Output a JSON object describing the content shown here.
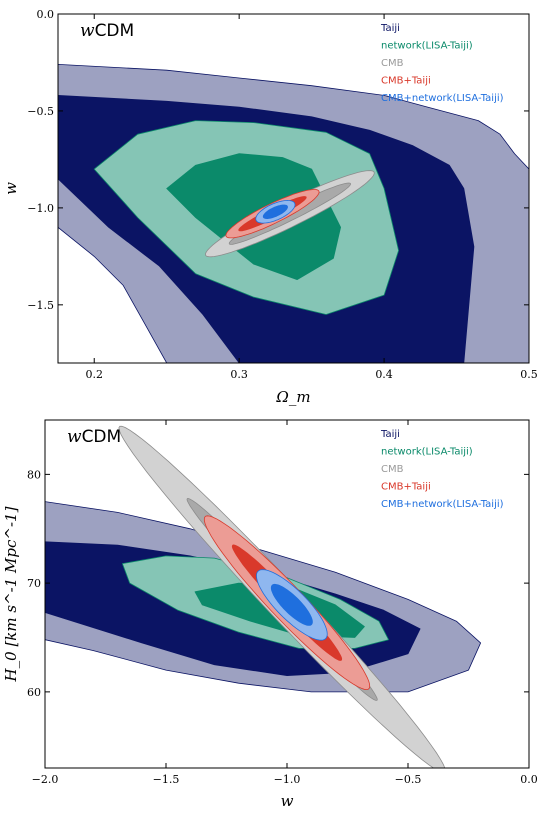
{
  "chart_data": [
    {
      "type": "contour",
      "title": "wCDM",
      "title_prefix": "w",
      "title_suffix": "CDM",
      "xlabel": "Ω_m",
      "ylabel": "w",
      "xlim": [
        0.175,
        0.5
      ],
      "ylim": [
        -1.8,
        0.0
      ],
      "x_ticks": [
        0.2,
        0.3,
        0.4,
        0.5
      ],
      "x_tick_labels": [
        "0.2",
        "0.3",
        "0.4",
        "0.5"
      ],
      "y_ticks": [
        -1.5,
        -1.0,
        -0.5,
        0.0
      ],
      "y_tick_labels": [
        "−1.5",
        "−1.0",
        "−0.5",
        "0.0"
      ],
      "legend_position": "top-right",
      "series": [
        {
          "name": "Taiji",
          "color": "#0b1464",
          "contours": {
            "sigma2": [
              [
                0.175,
                -0.26
              ],
              [
                0.25,
                -0.29
              ],
              [
                0.3,
                -0.33
              ],
              [
                0.35,
                -0.37
              ],
              [
                0.4,
                -0.42
              ],
              [
                0.43,
                -0.48
              ],
              [
                0.465,
                -0.55
              ],
              [
                0.48,
                -0.62
              ],
              [
                0.49,
                -0.72
              ],
              [
                0.5,
                -0.8
              ],
              [
                0.5,
                -1.8
              ],
              [
                0.25,
                -1.8
              ],
              [
                0.235,
                -1.6
              ],
              [
                0.22,
                -1.4
              ],
              [
                0.2,
                -1.25
              ],
              [
                0.175,
                -1.1
              ]
            ],
            "sigma1": [
              [
                0.175,
                -0.42
              ],
              [
                0.25,
                -0.45
              ],
              [
                0.3,
                -0.48
              ],
              [
                0.35,
                -0.53
              ],
              [
                0.39,
                -0.6
              ],
              [
                0.42,
                -0.68
              ],
              [
                0.445,
                -0.78
              ],
              [
                0.455,
                -0.9
              ],
              [
                0.462,
                -1.2
              ],
              [
                0.455,
                -1.8
              ],
              [
                0.3,
                -1.8
              ],
              [
                0.275,
                -1.55
              ],
              [
                0.245,
                -1.3
              ],
              [
                0.21,
                -1.1
              ],
              [
                0.175,
                -0.85
              ]
            ]
          }
        },
        {
          "name": "network(LISA-Taiji)",
          "color": "#0b8a6a",
          "contours": {
            "sigma2": [
              [
                0.23,
                -0.62
              ],
              [
                0.27,
                -0.55
              ],
              [
                0.31,
                -0.56
              ],
              [
                0.36,
                -0.61
              ],
              [
                0.39,
                -0.72
              ],
              [
                0.4,
                -0.9
              ],
              [
                0.41,
                -1.22
              ],
              [
                0.4,
                -1.45
              ],
              [
                0.36,
                -1.55
              ],
              [
                0.31,
                -1.46
              ],
              [
                0.27,
                -1.34
              ],
              [
                0.23,
                -1.05
              ],
              [
                0.2,
                -0.8
              ]
            ],
            "sigma1": [
              [
                0.3,
                -0.72
              ],
              [
                0.33,
                -0.74
              ],
              [
                0.35,
                -0.8
              ],
              [
                0.36,
                -0.95
              ],
              [
                0.37,
                -1.1
              ],
              [
                0.365,
                -1.26
              ],
              [
                0.34,
                -1.37
              ],
              [
                0.31,
                -1.29
              ],
              [
                0.27,
                -1.05
              ],
              [
                0.25,
                -0.9
              ],
              [
                0.27,
                -0.78
              ]
            ]
          }
        },
        {
          "name": "CMB",
          "color": "#9a9a9a",
          "ellipses": {
            "center": [
              0.335,
              -1.03
            ],
            "angle_deg": 34,
            "sigma2": {
              "semi_major": 0.215,
              "semi_minor": 0.034
            },
            "sigma1": {
              "semi_major": 0.155,
              "semi_minor": 0.018
            }
          }
        },
        {
          "name": "CMB+Taiji",
          "color": "#d9392b",
          "ellipses": {
            "center": [
              0.323,
              -1.03
            ],
            "angle_deg": 34,
            "sigma2": {
              "semi_major": 0.118,
              "semi_minor": 0.026
            },
            "sigma1": {
              "semi_major": 0.086,
              "semi_minor": 0.013
            }
          }
        },
        {
          "name": "CMB+network(LISA-Taiji)",
          "color": "#1f6fde",
          "ellipses": {
            "center": [
              0.325,
              -1.02
            ],
            "angle_deg": 34,
            "sigma2": {
              "semi_major": 0.048,
              "semi_minor": 0.022
            },
            "sigma1": {
              "semi_major": 0.03,
              "semi_minor": 0.012
            }
          }
        }
      ]
    },
    {
      "type": "contour",
      "title": "wCDM",
      "title_prefix": "w",
      "title_suffix": "CDM",
      "xlabel": "w",
      "ylabel": "H_0 [km s^-1 Mpc^-1]",
      "xlim": [
        -2.0,
        0.0
      ],
      "ylim": [
        53.0,
        85.0
      ],
      "x_ticks": [
        -2.0,
        -1.5,
        -1.0,
        -0.5,
        0.0
      ],
      "x_tick_labels": [
        "−2.0",
        "−1.5",
        "−1.0",
        "−0.5",
        "0.0"
      ],
      "y_ticks": [
        60,
        70,
        80
      ],
      "y_tick_labels": [
        "60",
        "70",
        "80"
      ],
      "legend_position": "top-right",
      "series": [
        {
          "name": "Taiji",
          "color": "#0b1464",
          "contours": {
            "sigma2": [
              [
                -2.0,
                77.5
              ],
              [
                -1.7,
                76.5
              ],
              [
                -1.4,
                75.0
              ],
              [
                -1.1,
                73.0
              ],
              [
                -0.8,
                71.0
              ],
              [
                -0.5,
                68.5
              ],
              [
                -0.3,
                66.5
              ],
              [
                -0.2,
                64.5
              ],
              [
                -0.25,
                62.0
              ],
              [
                -0.5,
                60.0
              ],
              [
                -0.9,
                60.0
              ],
              [
                -1.2,
                60.8
              ],
              [
                -1.5,
                62.0
              ],
              [
                -1.8,
                63.8
              ],
              [
                -2.0,
                64.8
              ]
            ],
            "sigma1": [
              [
                -2.0,
                73.8
              ],
              [
                -1.7,
                73.5
              ],
              [
                -1.4,
                72.5
              ],
              [
                -1.1,
                71.0
              ],
              [
                -0.8,
                69.0
              ],
              [
                -0.6,
                67.5
              ],
              [
                -0.45,
                65.8
              ],
              [
                -0.5,
                63.5
              ],
              [
                -0.75,
                61.8
              ],
              [
                -1.0,
                61.5
              ],
              [
                -1.3,
                62.5
              ],
              [
                -1.6,
                64.5
              ],
              [
                -2.0,
                67.3
              ]
            ]
          }
        },
        {
          "name": "network(LISA-Taiji)",
          "color": "#0b8a6a",
          "contours": {
            "sigma2": [
              [
                -1.68,
                71.8
              ],
              [
                -1.5,
                72.5
              ],
              [
                -1.3,
                72.3
              ],
              [
                -1.0,
                70.5
              ],
              [
                -0.78,
                68.5
              ],
              [
                -0.62,
                66.5
              ],
              [
                -0.58,
                64.8
              ],
              [
                -0.72,
                64.0
              ],
              [
                -0.95,
                64.0
              ],
              [
                -1.2,
                65.5
              ],
              [
                -1.45,
                67.5
              ],
              [
                -1.65,
                70.0
              ]
            ],
            "sigma1": [
              [
                -1.38,
                69.2
              ],
              [
                -1.2,
                70.0
              ],
              [
                -1.0,
                69.8
              ],
              [
                -0.8,
                68.0
              ],
              [
                -0.68,
                66.0
              ],
              [
                -0.72,
                65.0
              ],
              [
                -0.95,
                65.2
              ],
              [
                -1.15,
                66.5
              ],
              [
                -1.35,
                68.0
              ]
            ]
          }
        },
        {
          "name": "CMB",
          "color": "#9a9a9a",
          "ellipses": {
            "center": [
              -1.02,
              68.5
            ],
            "angle_deg": -56,
            "sigma2": {
              "semi_major": 0.6,
              "semi_minor": 0.042
            },
            "sigma1": {
              "semi_major": 0.35,
              "semi_minor": 0.022
            }
          }
        },
        {
          "name": "CMB+Taiji",
          "color": "#d9392b",
          "ellipses": {
            "center": [
              -1.0,
              68.2
            ],
            "angle_deg": -56,
            "sigma2": {
              "semi_major": 0.3,
              "semi_minor": 0.04
            },
            "sigma1": {
              "semi_major": 0.2,
              "semi_minor": 0.02
            }
          }
        },
        {
          "name": "CMB+network(LISA-Taiji)",
          "color": "#1f6fde",
          "ellipses": {
            "center": [
              -0.98,
              68.0
            ],
            "angle_deg": -56,
            "sigma2": {
              "semi_major": 0.12,
              "semi_minor": 0.035
            },
            "sigma1": {
              "semi_major": 0.07,
              "semi_minor": 0.02
            }
          }
        }
      ]
    }
  ]
}
